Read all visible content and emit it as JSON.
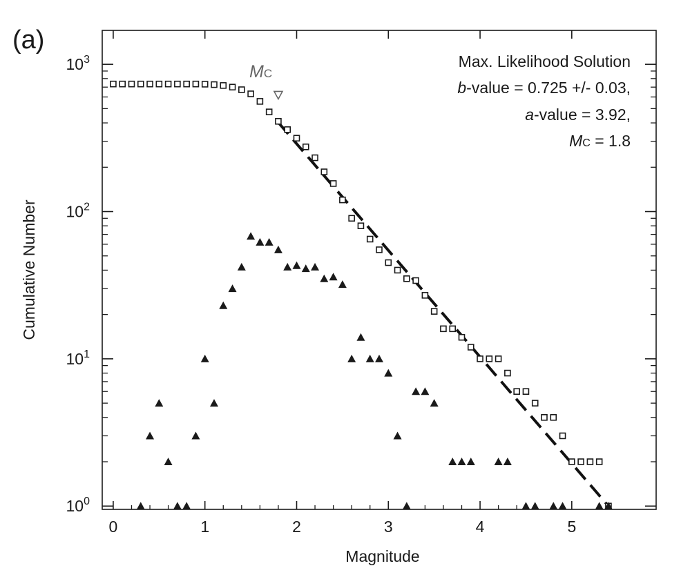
{
  "panel_label": "(a)",
  "chart_data": {
    "type": "scatter",
    "title": "",
    "xlabel": "Magnitude",
    "ylabel": "Cumulative Number",
    "xlim": [
      -0.12,
      5.92
    ],
    "ylim": [
      0.95,
      1700
    ],
    "yscale": "log",
    "grid": false,
    "x_ticks": [
      0,
      1,
      2,
      3,
      4,
      5
    ],
    "x_tick_labels": [
      "0",
      "1",
      "2",
      "3",
      "4",
      "5"
    ],
    "y_ticks": [
      1,
      10,
      100,
      1000
    ],
    "y_tick_labels": [
      {
        "base": "10",
        "exp": "0"
      },
      {
        "base": "10",
        "exp": "1"
      },
      {
        "base": "10",
        "exp": "2"
      },
      {
        "base": "10",
        "exp": "3"
      }
    ],
    "annotation": {
      "line1": "Max. Likelihood Solution",
      "b_sym": "b",
      "b_rest": "-value = 0.725 +/- 0.03,",
      "a_sym": "a",
      "a_rest": "-value = 3.92,",
      "mc_sym": "M",
      "mc_sub": "C",
      "mc_rest": " = 1.8"
    },
    "mc_marker": {
      "label_sym": "M",
      "label_sub": "C",
      "x": 1.8,
      "y": 620
    },
    "series": [
      {
        "marker": "open-square",
        "color": "#1a1a1a",
        "x": [
          0.0,
          0.1,
          0.2,
          0.3,
          0.4,
          0.5,
          0.6,
          0.7,
          0.8,
          0.9,
          1.0,
          1.1,
          1.2,
          1.3,
          1.4,
          1.5,
          1.6,
          1.7,
          1.8,
          1.9,
          2.0,
          2.1,
          2.2,
          2.3,
          2.4,
          2.5,
          2.6,
          2.7,
          2.8,
          2.9,
          3.0,
          3.1,
          3.2,
          3.3,
          3.4,
          3.5,
          3.6,
          3.7,
          3.8,
          3.9,
          4.0,
          4.1,
          4.2,
          4.3,
          4.4,
          4.5,
          4.6,
          4.7,
          4.8,
          4.9,
          5.0,
          5.1,
          5.2,
          5.3,
          5.4
        ],
        "y": [
          735,
          735,
          735,
          735,
          735,
          735,
          735,
          735,
          735,
          735,
          733,
          728,
          718,
          700,
          672,
          630,
          560,
          475,
          410,
          360,
          315,
          275,
          232,
          186,
          155,
          120,
          90,
          80,
          65,
          55,
          45,
          40,
          35,
          34,
          27,
          21,
          16,
          16,
          14,
          12,
          10,
          10,
          10,
          8,
          6,
          6,
          5,
          4,
          4,
          3,
          2,
          2,
          2,
          2,
          1
        ]
      },
      {
        "marker": "filled-triangle",
        "color": "#1a1a1a",
        "x": [
          0.3,
          0.4,
          0.5,
          0.6,
          0.7,
          0.8,
          0.9,
          1.0,
          1.1,
          1.2,
          1.3,
          1.4,
          1.5,
          1.6,
          1.7,
          1.8,
          1.9,
          2.0,
          2.1,
          2.2,
          2.3,
          2.4,
          2.5,
          2.6,
          2.7,
          2.8,
          2.9,
          3.0,
          3.1,
          3.2,
          3.3,
          3.4,
          3.5,
          3.7,
          3.8,
          3.9,
          4.2,
          4.3,
          4.5,
          4.6,
          4.8,
          4.9,
          5.3,
          5.4
        ],
        "y": [
          1,
          3,
          5,
          2,
          1,
          1,
          3,
          10,
          5,
          23,
          30,
          42,
          68,
          62,
          62,
          55,
          42,
          43,
          41,
          42,
          35,
          36,
          32,
          10,
          14,
          10,
          10,
          8,
          3,
          1,
          6,
          6,
          5,
          2,
          2,
          2,
          2,
          2,
          1,
          1,
          1,
          1,
          1,
          1
        ]
      },
      {
        "marker": "dashed-line",
        "color": "#111111",
        "x": [
          1.8,
          5.4
        ],
        "y": [
          402.7,
          1.0
        ]
      }
    ]
  }
}
